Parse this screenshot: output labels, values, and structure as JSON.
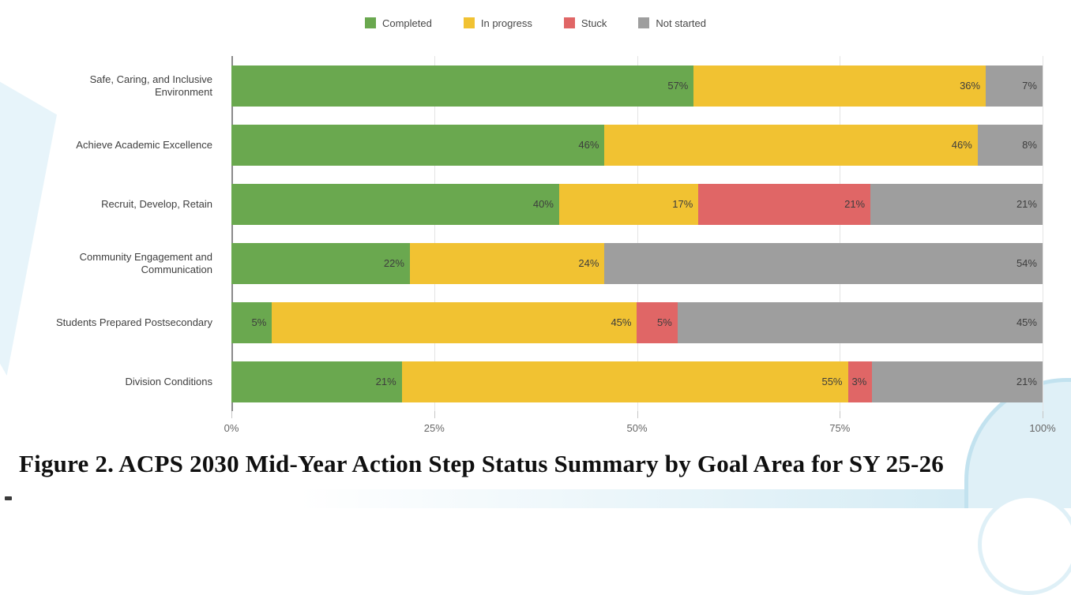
{
  "figure": {
    "caption": "Figure 2. ACPS 2030 Mid-Year Action Step Status Summary by Goal Area for SY 25-26"
  },
  "colors": {
    "completed": "#6aa84f",
    "in_progress": "#f1c232",
    "stuck": "#e06666",
    "not_started": "#9e9e9e",
    "background_accent": "#dff0f7"
  },
  "chart_data": {
    "type": "bar",
    "orientation": "horizontal",
    "stacked": true,
    "unit": "%",
    "title": "",
    "caption": "Figure 2. ACPS 2030 Mid-Year Action Step Status Summary by Goal Area for SY 25-26",
    "categories": [
      "Safe, Caring, and Inclusive Environment",
      "Achieve Academic Excellence",
      "Recruit, Develop, Retain",
      "Community Engagement and Communication",
      "Students Prepared Postsecondary",
      "Division Conditions"
    ],
    "series": [
      {
        "name": "Completed",
        "color": "#6aa84f",
        "values": [
          57,
          46,
          40,
          22,
          5,
          21
        ]
      },
      {
        "name": "In progress",
        "color": "#f1c232",
        "values": [
          36,
          46,
          17,
          24,
          45,
          55
        ]
      },
      {
        "name": "Stuck",
        "color": "#e06666",
        "values": [
          0,
          0,
          21,
          0,
          5,
          3
        ]
      },
      {
        "name": "Not started",
        "color": "#9e9e9e",
        "values": [
          7,
          8,
          21,
          54,
          45,
          21
        ]
      }
    ],
    "x_ticks": [
      "0%",
      "25%",
      "50%",
      "75%",
      "100%"
    ],
    "x_tick_values": [
      0,
      25,
      50,
      75,
      100
    ],
    "xlim": [
      0,
      100
    ],
    "legend_position": "top",
    "grid": true
  }
}
